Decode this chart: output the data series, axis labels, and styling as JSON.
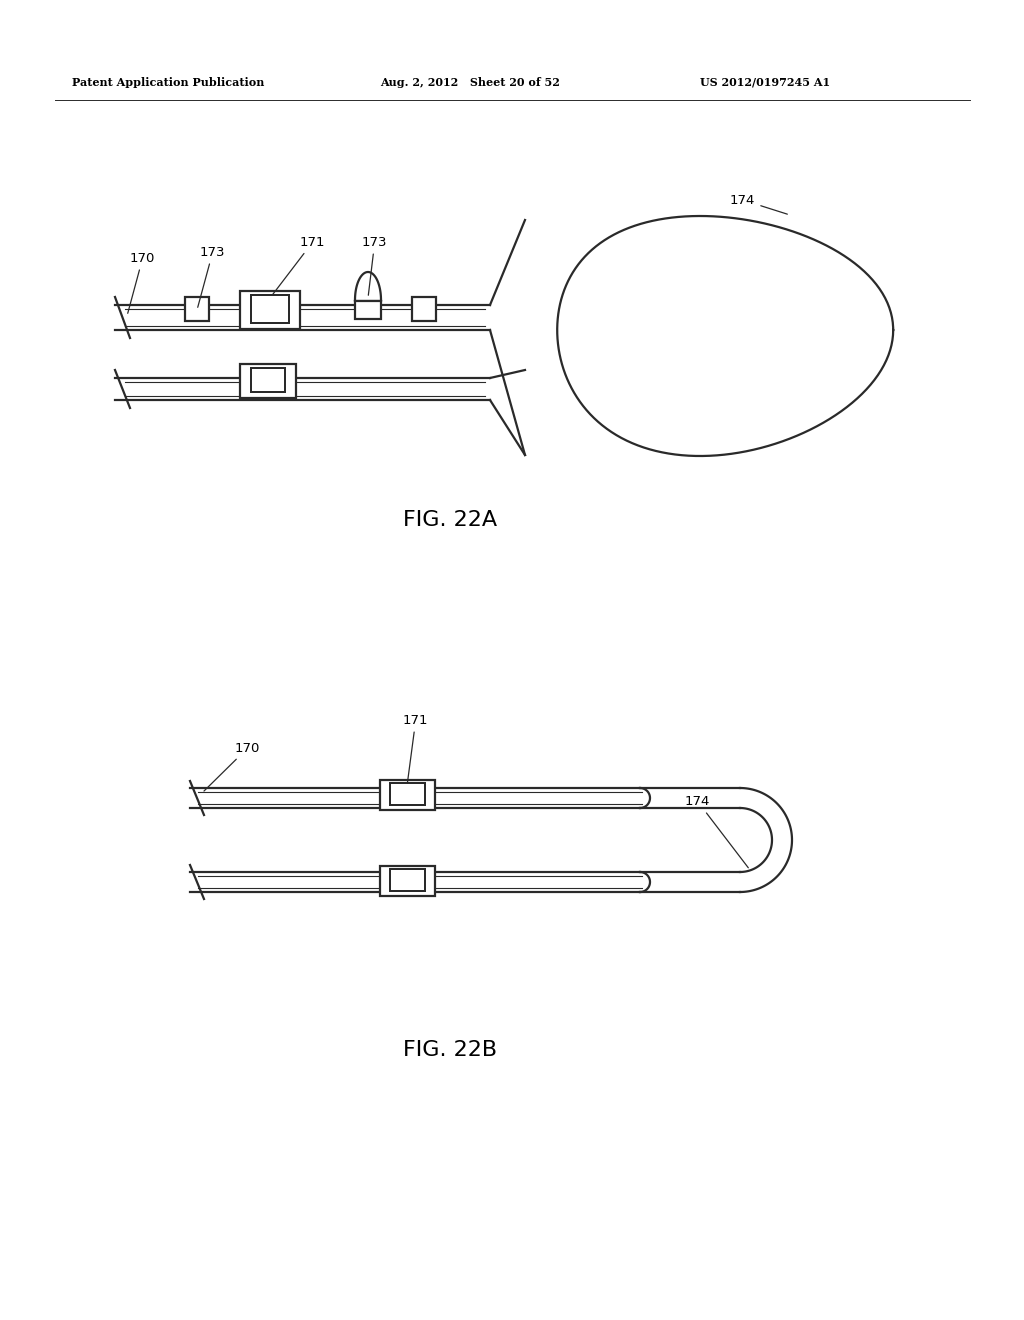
{
  "bg_color": "#ffffff",
  "line_color": "#2a2a2a",
  "line_width": 1.6,
  "header_left": "Patent Application Publication",
  "header_mid": "Aug. 2, 2012   Sheet 20 of 52",
  "header_right": "US 2012/0197245 A1",
  "fig22a_label": "FIG. 22A",
  "fig22b_label": "FIG. 22B",
  "label_170_a": "170",
  "label_173_a1": "173",
  "label_171_a": "171",
  "label_173_a2": "173",
  "label_174_a": "174",
  "label_170_b": "170",
  "label_171_b": "171",
  "label_174_b": "174"
}
